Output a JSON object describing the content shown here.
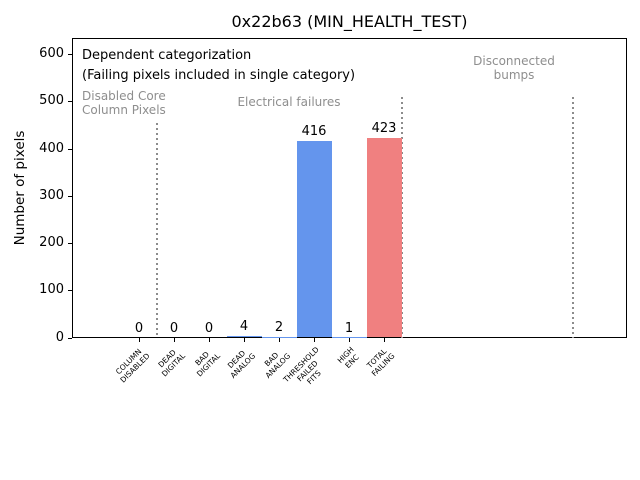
{
  "figure": {
    "title": "0x22b63 (MIN_HEALTH_TEST)"
  },
  "annotations": {
    "dependent": "Dependent categorization",
    "failing": "(Failing pixels included in single category)"
  },
  "sections": {
    "disabled_core": [
      "Disabled Core",
      "Column Pixels"
    ],
    "electrical": "Electrical failures",
    "disconnected": [
      "Disconnected",
      "bumps"
    ]
  },
  "chart_data": {
    "type": "bar",
    "title": "0x22b63 (MIN_HEALTH_TEST)",
    "xlabel": "",
    "ylabel": "Number of pixels",
    "categories": [
      "COLUMN DISABLED",
      "DEAD DIGITAL",
      "BAD DIGITAL",
      "DEAD ANALOG",
      "BAD ANALOG",
      "THRESHOLD FAILED FITS",
      "HIGH ENC",
      "TOTAL FAILING"
    ],
    "category_lines": [
      [
        "COLUMN",
        "DISABLED"
      ],
      [
        "DEAD",
        "DIGITAL"
      ],
      [
        "BAD",
        "DIGITAL"
      ],
      [
        "DEAD",
        "ANALOG"
      ],
      [
        "BAD",
        "ANALOG"
      ],
      [
        "THRESHOLD",
        "FAILED",
        "FITS"
      ],
      [
        "HIGH",
        "ENC"
      ],
      [
        "TOTAL",
        "FAILING"
      ]
    ],
    "values": [
      0,
      0,
      0,
      4,
      2,
      416,
      1,
      423
    ],
    "value_labels": [
      "0",
      "0",
      "0",
      "4",
      "2",
      "416",
      "1",
      "423"
    ],
    "bar_colors": [
      "#6495ED",
      "#6495ED",
      "#6495ED",
      "#6495ED",
      "#6495ED",
      "#6495ED",
      "#6495ED",
      "#F08080"
    ],
    "yticks": [
      0,
      100,
      200,
      300,
      400,
      500,
      600
    ],
    "ylim": [
      0,
      635
    ],
    "grid": false,
    "legend": null,
    "separators_x": [
      0.5,
      7.5,
      12.4
    ],
    "section_notes": [
      "Disabled Core / Column Pixels (left of first separator)",
      "Electrical failures (between separators 1 and 2)",
      "Disconnected bumps (between separators 2 and 3)"
    ]
  },
  "colors": {
    "bar_blue": "#6495ED",
    "bar_red": "#F08080",
    "annotation_gray": "#8e8e8e",
    "separator_gray": "#8c8c8c",
    "axis_black": "#000000",
    "background": "#ffffff"
  }
}
